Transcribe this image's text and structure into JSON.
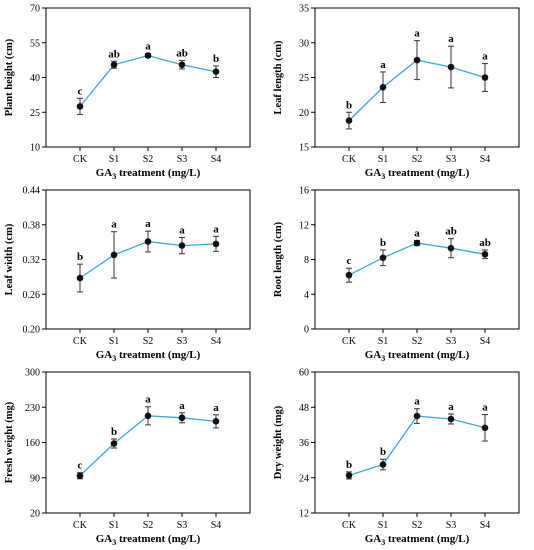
{
  "style": {
    "line_color": "#3aa6dd",
    "point_color": "#111111",
    "axis_color": "#000000"
  },
  "chart_data": [
    {
      "type": "line",
      "ylabel": "Plant height (cm)",
      "xlabel_main": "GA",
      "xlabel_sub": "3",
      "xlabel_rest": " treatment (mg/L)",
      "categories": [
        "CK",
        "S1",
        "S2",
        "S3",
        "S4"
      ],
      "ylim": [
        10,
        70
      ],
      "yticks": [
        "10",
        "25",
        "40",
        "55",
        "70"
      ],
      "series": [
        {
          "values": [
            27.5,
            45.5,
            49.5,
            45.5,
            42.5
          ],
          "errors": [
            3.5,
            1.5,
            0.8,
            1.8,
            2.5
          ],
          "labels": [
            "c",
            "ab",
            "a",
            "ab",
            "b"
          ]
        }
      ]
    },
    {
      "type": "line",
      "ylabel": "Leaf length (cm)",
      "xlabel_main": "GA",
      "xlabel_sub": "3",
      "xlabel_rest": " treatment (mg/L)",
      "categories": [
        "CK",
        "S1",
        "S2",
        "S3",
        "S4"
      ],
      "ylim": [
        15,
        35
      ],
      "yticks": [
        "15",
        "20",
        "25",
        "30",
        "35"
      ],
      "series": [
        {
          "values": [
            18.8,
            23.6,
            27.5,
            26.5,
            25.0
          ],
          "errors": [
            1.2,
            2.2,
            2.8,
            3.0,
            2.0
          ],
          "labels": [
            "b",
            "a",
            "a",
            "a",
            "a"
          ]
        }
      ]
    },
    {
      "type": "line",
      "ylabel": "Leaf width (cm)",
      "xlabel_main": "GA",
      "xlabel_sub": "3",
      "xlabel_rest": " treatment (mg/L)",
      "categories": [
        "CK",
        "S1",
        "S2",
        "S3",
        "S4"
      ],
      "ylim": [
        0.2,
        0.44
      ],
      "yticks": [
        "0.20",
        "0.26",
        "0.32",
        "0.38",
        "0.44"
      ],
      "series": [
        {
          "values": [
            0.288,
            0.328,
            0.351,
            0.344,
            0.347
          ],
          "errors": [
            0.024,
            0.04,
            0.018,
            0.014,
            0.013
          ],
          "labels": [
            "b",
            "a",
            "a",
            "a",
            "a"
          ]
        }
      ]
    },
    {
      "type": "line",
      "ylabel": "Root length (cm)",
      "xlabel_main": "GA",
      "xlabel_sub": "3",
      "xlabel_rest": " treatment (mg/L)",
      "categories": [
        "CK",
        "S1",
        "S2",
        "S3",
        "S4"
      ],
      "ylim": [
        0,
        16
      ],
      "yticks": [
        "0",
        "4",
        "8",
        "12",
        "16"
      ],
      "series": [
        {
          "values": [
            6.2,
            8.2,
            9.9,
            9.3,
            8.6
          ],
          "errors": [
            0.8,
            0.9,
            0.3,
            1.1,
            0.5
          ],
          "labels": [
            "c",
            "b",
            "a",
            "ab",
            "ab"
          ]
        }
      ]
    },
    {
      "type": "line",
      "ylabel": "Fresh weight (mg)",
      "xlabel_main": "GA",
      "xlabel_sub": "3",
      "xlabel_rest": " treatment (mg/L)",
      "categories": [
        "CK",
        "S1",
        "S2",
        "S3",
        "S4"
      ],
      "ylim": [
        20,
        300
      ],
      "yticks": [
        "20",
        "90",
        "160",
        "230",
        "300"
      ],
      "series": [
        {
          "values": [
            94,
            158,
            213,
            209,
            202
          ],
          "errors": [
            6,
            9,
            18,
            10,
            13
          ],
          "labels": [
            "c",
            "b",
            "a",
            "a",
            "a"
          ]
        }
      ]
    },
    {
      "type": "line",
      "ylabel": "Dry weight (mg)",
      "xlabel_main": "GA",
      "xlabel_sub": "3",
      "xlabel_rest": " treatment (mg/L)",
      "categories": [
        "CK",
        "S1",
        "S2",
        "S3",
        "S4"
      ],
      "ylim": [
        12,
        60
      ],
      "yticks": [
        "12",
        "24",
        "36",
        "48",
        "60"
      ],
      "series": [
        {
          "values": [
            24.8,
            28.5,
            45.0,
            44.0,
            41.0
          ],
          "errors": [
            1.2,
            1.8,
            2.5,
            1.7,
            4.5
          ],
          "labels": [
            "b",
            "b",
            "a",
            "a",
            "a"
          ]
        }
      ]
    }
  ]
}
